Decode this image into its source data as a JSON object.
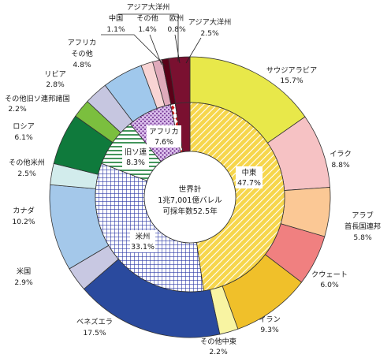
{
  "center": {
    "line1": "世界計",
    "line2": "1兆7,001億バレル",
    "line3": "可採年数52.5年"
  },
  "chart_data": {
    "type": "pie",
    "title": "",
    "inner": [
      {
        "name": "中東",
        "value": 47.7,
        "pct": "47.7%",
        "fill": "#f6d64c",
        "pattern": "hatch-yellow"
      },
      {
        "name": "米州",
        "value": 33.1,
        "pct": "33.1%",
        "fill": "#ffffff",
        "pattern": "grid-blue"
      },
      {
        "name": "旧ソ連",
        "value": 8.3,
        "pct": "8.3%",
        "fill": "#ffffff",
        "pattern": "stripe-green"
      },
      {
        "name": "アフリカ",
        "value": 7.6,
        "pct": "7.6%",
        "fill": "#c9a0dc",
        "pattern": "dots-purple"
      },
      {
        "name": "欧州",
        "value": 0.8,
        "pct": "",
        "fill": "#ffffff",
        "pattern": "diamond-red"
      },
      {
        "name": "アジア大洋州",
        "value": 2.5,
        "pct": "",
        "fill": "#7a1030",
        "pattern": "solid"
      }
    ],
    "outer": [
      {
        "name": "サウジアラビア",
        "value": 15.7,
        "pct": "15.7%",
        "color": "#e8e84a"
      },
      {
        "name": "イラク",
        "value": 8.8,
        "pct": "8.8%",
        "color": "#f6c2c4"
      },
      {
        "name": "アラブ首長国連邦",
        "value": 5.8,
        "pct": "5.8%",
        "color": "#fbc895"
      },
      {
        "name": "クウェート",
        "value": 6.0,
        "pct": "6.0%",
        "color": "#f08080"
      },
      {
        "name": "イラン",
        "value": 9.3,
        "pct": "9.3%",
        "color": "#f0c02a"
      },
      {
        "name": "その他中東",
        "value": 2.2,
        "pct": "2.2%",
        "color": "#f8f4a2"
      },
      {
        "name": "ベネズエラ",
        "value": 17.5,
        "pct": "17.5%",
        "color": "#2a4a9e"
      },
      {
        "name": "米国",
        "value": 2.9,
        "pct": "2.9%",
        "color": "#c8c8e2"
      },
      {
        "name": "カナダ",
        "value": 10.2,
        "pct": "10.2%",
        "color": "#a4c8ea"
      },
      {
        "name": "その他米州",
        "value": 2.5,
        "pct": "2.5%",
        "color": "#d2ecec"
      },
      {
        "name": "ロシア",
        "value": 6.1,
        "pct": "6.1%",
        "color": "#0f7a3c"
      },
      {
        "name": "その他旧ソ連邦諸国",
        "value": 2.2,
        "pct": "2.2%",
        "color": "#7bbf3e"
      },
      {
        "name": "リビア",
        "value": 2.8,
        "pct": "2.8%",
        "color": "#c6c6e0"
      },
      {
        "name": "その他",
        "value": 4.8,
        "pct": "4.8%",
        "color": "#a0c8ec"
      },
      {
        "name": "その他",
        "value": 1.4,
        "pct": "1.4%",
        "color": "#f8d4d4"
      },
      {
        "name": "中国",
        "value": 1.1,
        "pct": "1.1%",
        "color": "#e0aabb"
      },
      {
        "name": "欧州",
        "value": 0.8,
        "pct": "0.8%",
        "color": "#5a0018"
      },
      {
        "name": "アジア大洋州",
        "value": 2.5,
        "pct": "2.5%",
        "color": "#7a1030"
      }
    ],
    "outer_labels": {
      "saudi": [
        "サウジアラビア",
        "15.7%"
      ],
      "iraq": [
        "イラク",
        "8.8%"
      ],
      "uae": [
        "アラブ",
        "首長国連邦",
        "5.8%"
      ],
      "kuwait": [
        "クウェート",
        "6.0%"
      ],
      "iran": [
        "イラン",
        "9.3%"
      ],
      "other_me": [
        "その他中東",
        "2.2%"
      ],
      "venezuela": [
        "ベネズエラ",
        "17.5%"
      ],
      "us": [
        "米国",
        "2.9%"
      ],
      "canada": [
        "カナダ",
        "10.2%"
      ],
      "other_am": [
        "その他米州",
        "2.5%"
      ],
      "russia": [
        "ロシア",
        "6.1%"
      ],
      "other_fsu": [
        "その他旧ソ連邦諸国",
        "2.2%"
      ],
      "libya": [
        "リビア",
        "2.8%"
      ],
      "other_af": [
        "その他",
        "4.8%"
      ],
      "africa_hdr": [
        "アフリカ"
      ],
      "asia_hdr": [
        "アジア大洋州"
      ],
      "china": [
        "中国",
        "1.1%"
      ],
      "other_asia": [
        "その他",
        "1.4%"
      ],
      "europe": [
        "欧州",
        "0.8%"
      ],
      "asia_total": [
        "アジア大洋州",
        "2.5%"
      ]
    }
  }
}
